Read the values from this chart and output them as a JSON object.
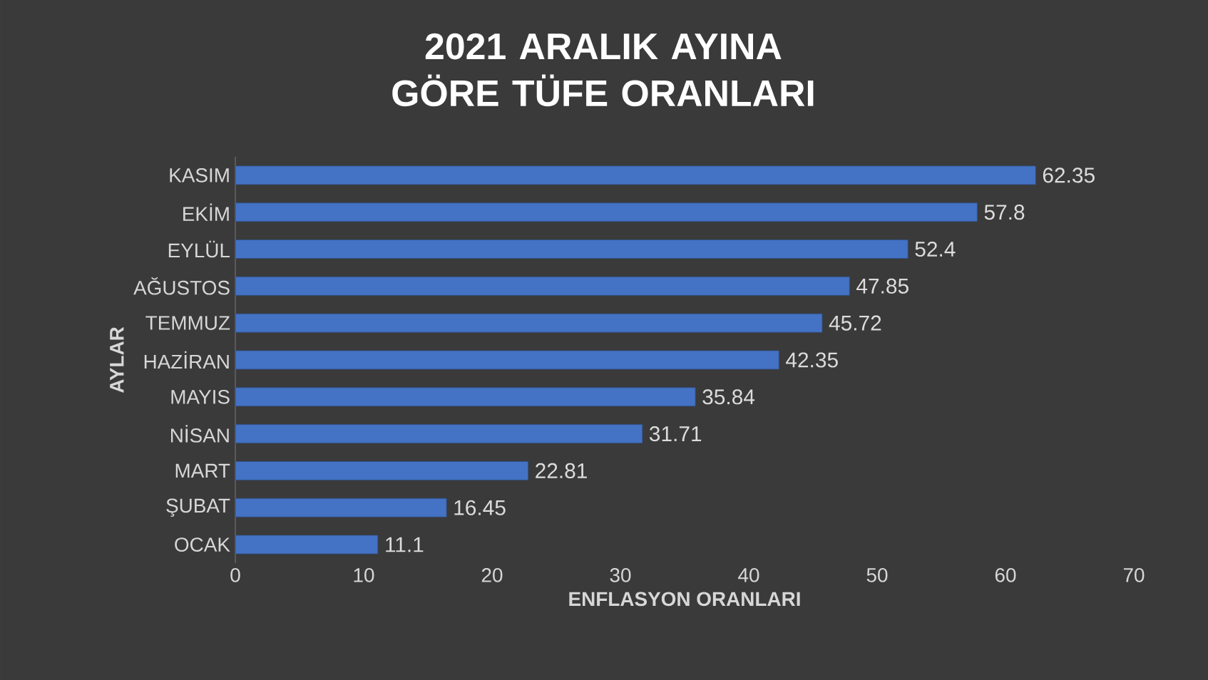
{
  "chart_data": {
    "type": "bar",
    "orientation": "horizontal",
    "title": "2021 ARALIK AYINA GÖRE TÜFE ORANLARI",
    "xlabel": "ENFLASYON ORANLARI",
    "ylabel": "AYLAR",
    "categories": [
      "KASIM",
      "EKİM",
      "EYLÜL",
      "AĞUSTOS",
      "TEMMUZ",
      "HAZİRAN",
      "MAYIS",
      "NİSAN",
      "MART",
      "ŞUBAT",
      "OCAK"
    ],
    "values": [
      62.35,
      57.8,
      52.4,
      47.85,
      45.72,
      42.35,
      35.84,
      31.71,
      22.81,
      16.45,
      11.1
    ],
    "color": "#4472c4",
    "xlim": [
      0,
      70
    ],
    "xticks": [
      0,
      10,
      20,
      30,
      40,
      50,
      60,
      70
    ],
    "data_labels": true
  }
}
